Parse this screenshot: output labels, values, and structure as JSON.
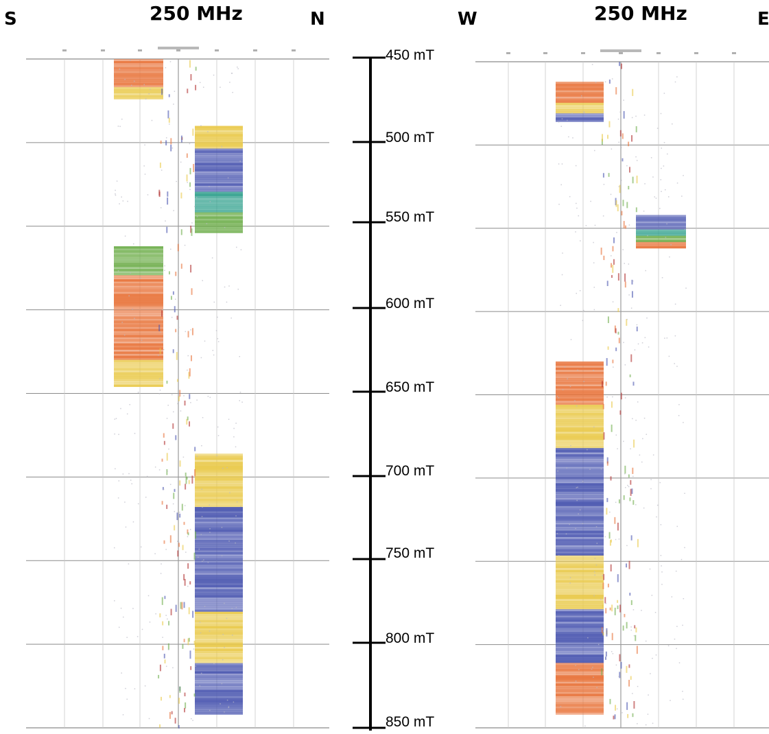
{
  "left_panel": {
    "dir_left": "S",
    "dir_right": "N",
    "frequency": "250 MHz"
  },
  "right_panel": {
    "dir_left": "W",
    "dir_right": "E",
    "frequency": "250 MHz"
  },
  "depth_scale": {
    "ticks": [
      "450 mT",
      "500 mT",
      "550 mT",
      "600 mT",
      "650 mT",
      "700 mT",
      "750 mT",
      "800 mT",
      "850 mT"
    ]
  },
  "colors": {
    "orange": "#e8733a",
    "yellow": "#e9c94a",
    "green": "#6fae4c",
    "blue": "#4b57b0",
    "teal": "#2f9f8c",
    "grid": "#8a8a8a"
  },
  "left_blocks": [
    {
      "side": "left",
      "from": 0.0,
      "to": 0.06,
      "palette": [
        "orange",
        "orange",
        "yellow"
      ]
    },
    {
      "side": "right",
      "from": 0.1,
      "to": 0.26,
      "palette": [
        "yellow",
        "blue",
        "blue",
        "teal",
        "green"
      ]
    },
    {
      "side": "left",
      "from": 0.28,
      "to": 0.49,
      "palette": [
        "green",
        "orange",
        "orange",
        "orange",
        "yellow"
      ]
    },
    {
      "side": "right",
      "from": 0.59,
      "to": 0.98,
      "palette": [
        "yellow",
        "blue",
        "blue",
        "yellow",
        "blue"
      ]
    }
  ],
  "right_blocks": [
    {
      "side": "left",
      "from": 0.03,
      "to": 0.09,
      "palette": [
        "orange",
        "orange",
        "yellow",
        "blue"
      ]
    },
    {
      "side": "right",
      "from": 0.23,
      "to": 0.28,
      "palette": [
        "blue",
        "blue",
        "teal",
        "green",
        "orange"
      ]
    },
    {
      "side": "left",
      "from": 0.45,
      "to": 0.58,
      "palette": [
        "orange",
        "orange",
        "yellow",
        "yellow"
      ]
    },
    {
      "side": "left",
      "from": 0.58,
      "to": 0.98,
      "palette": [
        "blue",
        "blue",
        "yellow",
        "blue",
        "orange"
      ]
    }
  ]
}
